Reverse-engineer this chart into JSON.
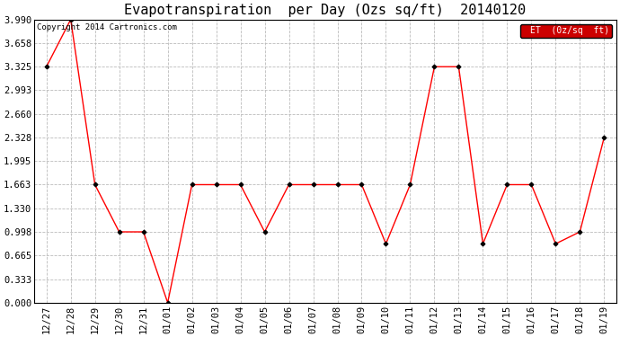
{
  "title": "Evapotranspiration  per Day (Ozs sq/ft)  20140120",
  "copyright": "Copyright 2014 Cartronics.com",
  "legend_label": "ET  (0z/sq  ft)",
  "x_labels": [
    "12/27",
    "12/28",
    "12/29",
    "12/30",
    "12/31",
    "01/01",
    "01/02",
    "01/03",
    "01/04",
    "01/05",
    "01/06",
    "01/07",
    "01/08",
    "01/09",
    "01/10",
    "01/11",
    "01/12",
    "01/13",
    "01/14",
    "01/15",
    "01/16",
    "01/17",
    "01/18",
    "01/19"
  ],
  "y_values": [
    3.325,
    3.99,
    1.663,
    0.998,
    0.998,
    0.0,
    1.663,
    1.663,
    1.663,
    0.998,
    1.663,
    1.663,
    1.663,
    1.663,
    0.83,
    1.663,
    3.325,
    3.325,
    0.83,
    1.663,
    1.663,
    0.83,
    0.998,
    2.328
  ],
  "y_ticks": [
    0.0,
    0.333,
    0.665,
    0.998,
    1.33,
    1.663,
    1.995,
    2.328,
    2.66,
    2.993,
    3.325,
    3.658,
    3.99
  ],
  "line_color": "red",
  "marker": "D",
  "marker_size": 2.5,
  "marker_color": "black",
  "legend_bg": "#cc0000",
  "legend_text_color": "white",
  "background_color": "white",
  "grid_color": "#bbbbbb",
  "title_fontsize": 11,
  "tick_fontsize": 7.5,
  "copyright_fontsize": 6.5,
  "ylim": [
    0.0,
    3.99
  ]
}
